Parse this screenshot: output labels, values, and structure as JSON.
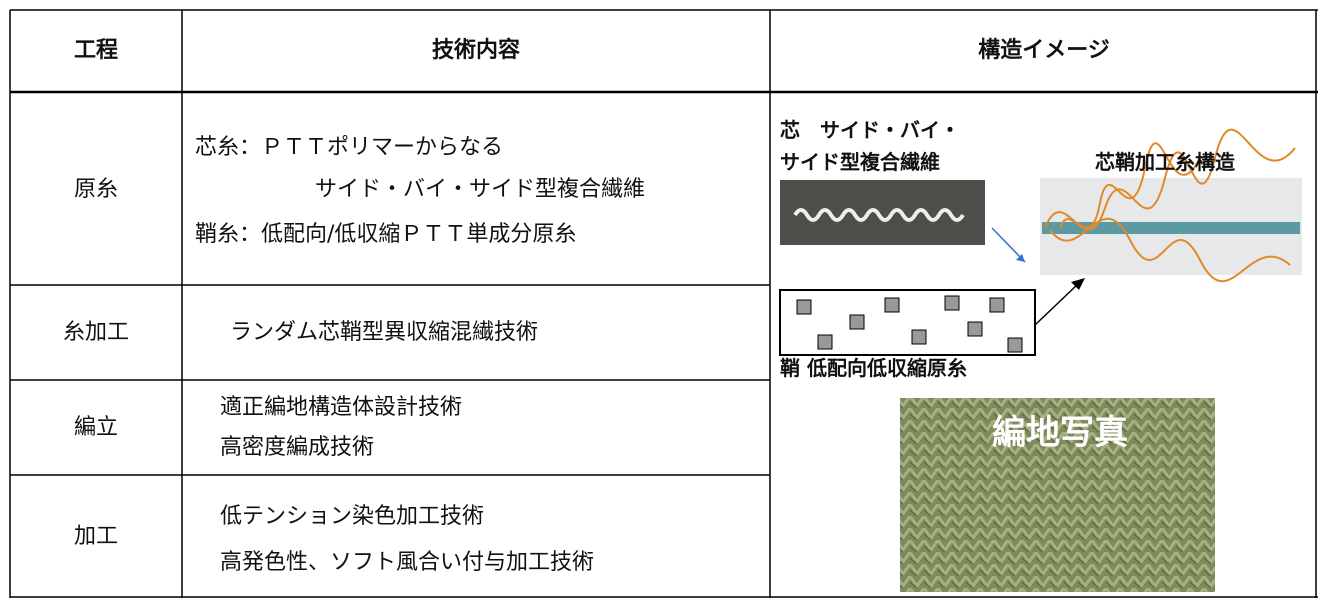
{
  "table": {
    "headers": [
      "工程",
      "技術内容",
      "構造イメージ"
    ],
    "rows": [
      {
        "process": "原糸",
        "content": [
          "芯糸：ＰＴＴポリマーからなる",
          "サイド・バイ・サイド型複合繊維",
          "鞘糸：低配向/低収縮ＰＴＴ単成分原糸"
        ]
      },
      {
        "process": "糸加工",
        "content": [
          "ランダム芯鞘型異収縮混繊技術"
        ]
      },
      {
        "process": "編立",
        "content": [
          "適正編地構造体設計技術",
          "高密度編成技術"
        ]
      },
      {
        "process": "加工",
        "content": [
          "低テンション染色加工技術",
          "高発色性、ソフト風合い付与加工技術"
        ]
      }
    ]
  },
  "image_panel": {
    "core_label": [
      "芯　サイド・バイ・",
      "サイド型複合繊維"
    ],
    "result_label": "芯鞘加工糸構造",
    "sheath_label": "鞘 低配向低収縮原糸",
    "fabric_label": "編地写真"
  }
}
